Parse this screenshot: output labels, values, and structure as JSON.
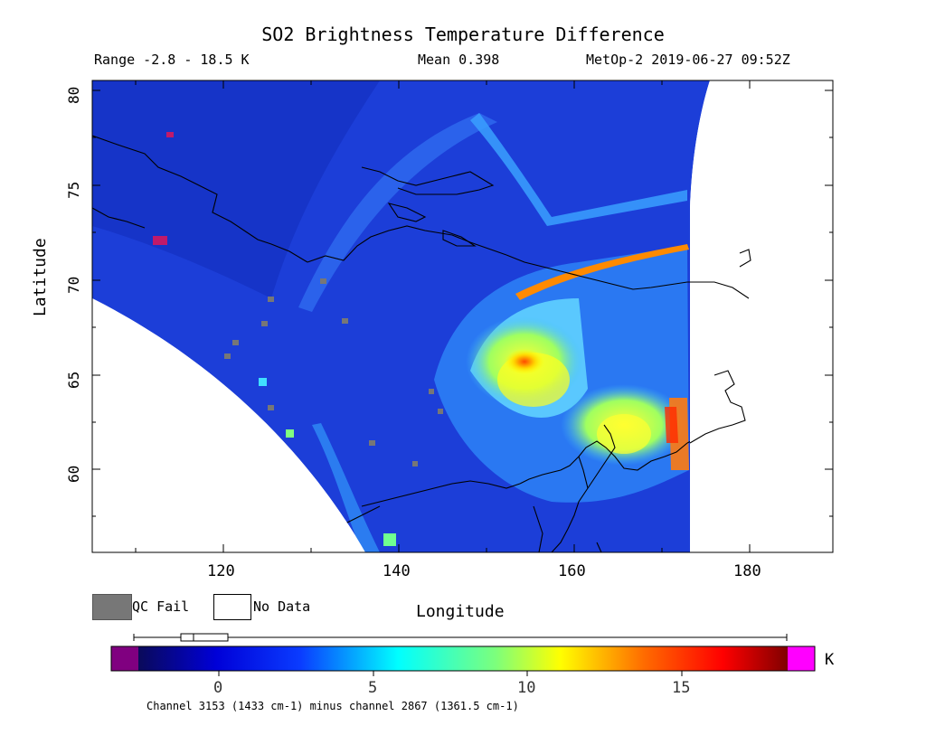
{
  "header": {
    "title": "SO2 Brightness Temperature Difference",
    "range": "Range -2.8 - 18.5 K",
    "mean": "Mean 0.398",
    "source": "MetOp-2 2019-06-27 09:52Z"
  },
  "axes": {
    "xlabel": "Longitude",
    "ylabel": "Latitude",
    "xticks": [
      "120",
      "140",
      "160",
      "180"
    ],
    "yticks": [
      "60",
      "65",
      "70",
      "75",
      "80"
    ],
    "xlim": [
      105,
      189
    ],
    "ylim": [
      55.5,
      80.5
    ]
  },
  "legend": {
    "qc_fail": "QC Fail",
    "no_data": "No Data",
    "qc_color": "#777777"
  },
  "colorbar": {
    "unit": "K",
    "ticks": [
      "0",
      "5",
      "10",
      "15"
    ],
    "range": [
      -2.8,
      18.5
    ],
    "underflow_color": "#800080",
    "overflow_color": "#ff00ff",
    "boxplot": {
      "min": -2.8,
      "q1": -1.2,
      "median": -0.8,
      "q3": 0.9,
      "max": 18.5
    }
  },
  "footnote": "Channel 3153 (1433 cm-1) minus channel 2867 (1361.5 cm-1)",
  "map": {
    "background_color": "#1a3fd6",
    "features": [
      "Taymyr coast",
      "Laptev Sea coast",
      "New Siberian Islands",
      "Kamchatka",
      "Sea of Okhotsk coast",
      "Chukotka"
    ]
  }
}
